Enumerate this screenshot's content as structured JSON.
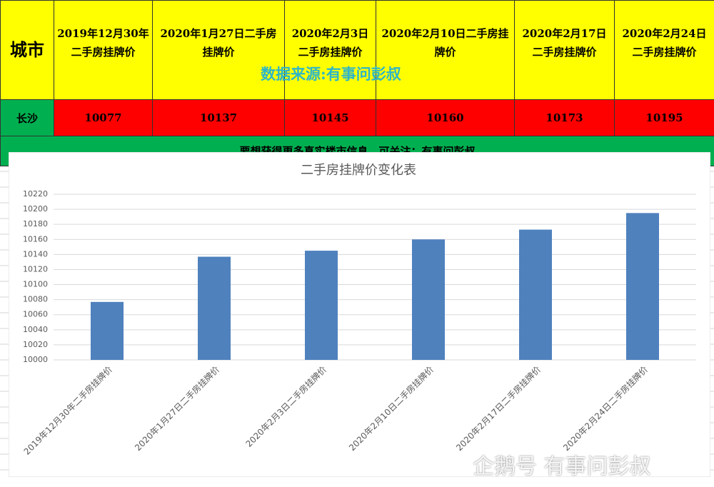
{
  "table": {
    "header": [
      "城市",
      "2019年12月30年二手房挂牌价",
      "2020年1月27日二手房挂牌价",
      "2020年2月3日二手房挂牌价",
      "2020年2月10日二手房挂牌价",
      "2020年2月17日二手房挂牌价",
      "2020年2月24日二手房挂牌价"
    ],
    "rows": [
      [
        "长沙",
        10077,
        10137,
        10145,
        10160,
        10173,
        10195
      ]
    ],
    "banner": "要想获得更多真实楼市信息，可关注：有事问彭叔"
  },
  "source_note": "数据来源:有事问彭叔",
  "watermark": "企鹅号 有事问彭叔",
  "chart_data": {
    "type": "bar",
    "title": "二手房挂牌价变化表",
    "categories": [
      "2019年12月30年二手房挂牌价",
      "2020年1月27日二手房挂牌价",
      "2020年2月3日二手房挂牌价",
      "2020年2月10日二手房挂牌价",
      "2020年2月17日二手房挂牌价",
      "2020年2月24日二手房挂牌价"
    ],
    "values": [
      10077,
      10137,
      10145,
      10160,
      10173,
      10195
    ],
    "color": "#4f81bd",
    "ylim": [
      10000,
      10220
    ],
    "yticks": [
      10000,
      10020,
      10040,
      10060,
      10080,
      10100,
      10120,
      10140,
      10160,
      10180,
      10200,
      10220
    ],
    "grid": true
  }
}
